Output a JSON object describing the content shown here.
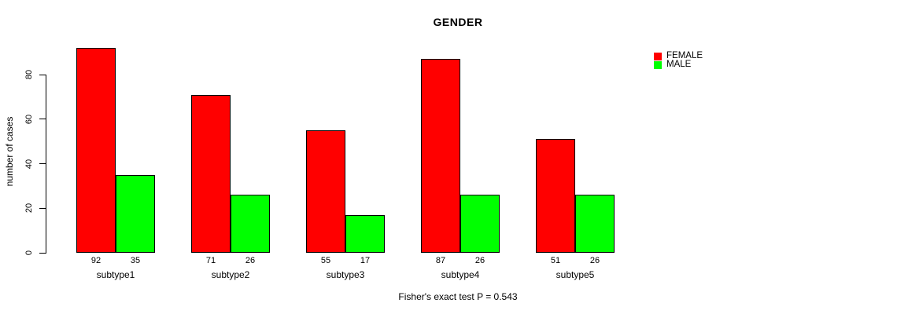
{
  "chart_data": {
    "type": "bar",
    "title": "GENDER",
    "ylabel": "number of cases",
    "xlabel": "",
    "categories": [
      "subtype1",
      "subtype2",
      "subtype3",
      "subtype4",
      "subtype5"
    ],
    "series": [
      {
        "name": "FEMALE",
        "color": "#FF0000",
        "values": [
          92,
          71,
          55,
          87,
          51
        ]
      },
      {
        "name": "MALE",
        "color": "#00FF00",
        "values": [
          35,
          26,
          17,
          26,
          26
        ]
      }
    ],
    "yticks": [
      0,
      20,
      40,
      60,
      80
    ],
    "ylim": [
      0,
      96
    ],
    "grid": false,
    "bar_value_labels_shown": true,
    "legend_position": "top-right",
    "annotation": "Fisher's exact test P = 0.543"
  },
  "colors": {
    "female": "#FF0000",
    "male": "#00FF00",
    "axis": "#000000",
    "background": "#FFFFFF"
  }
}
